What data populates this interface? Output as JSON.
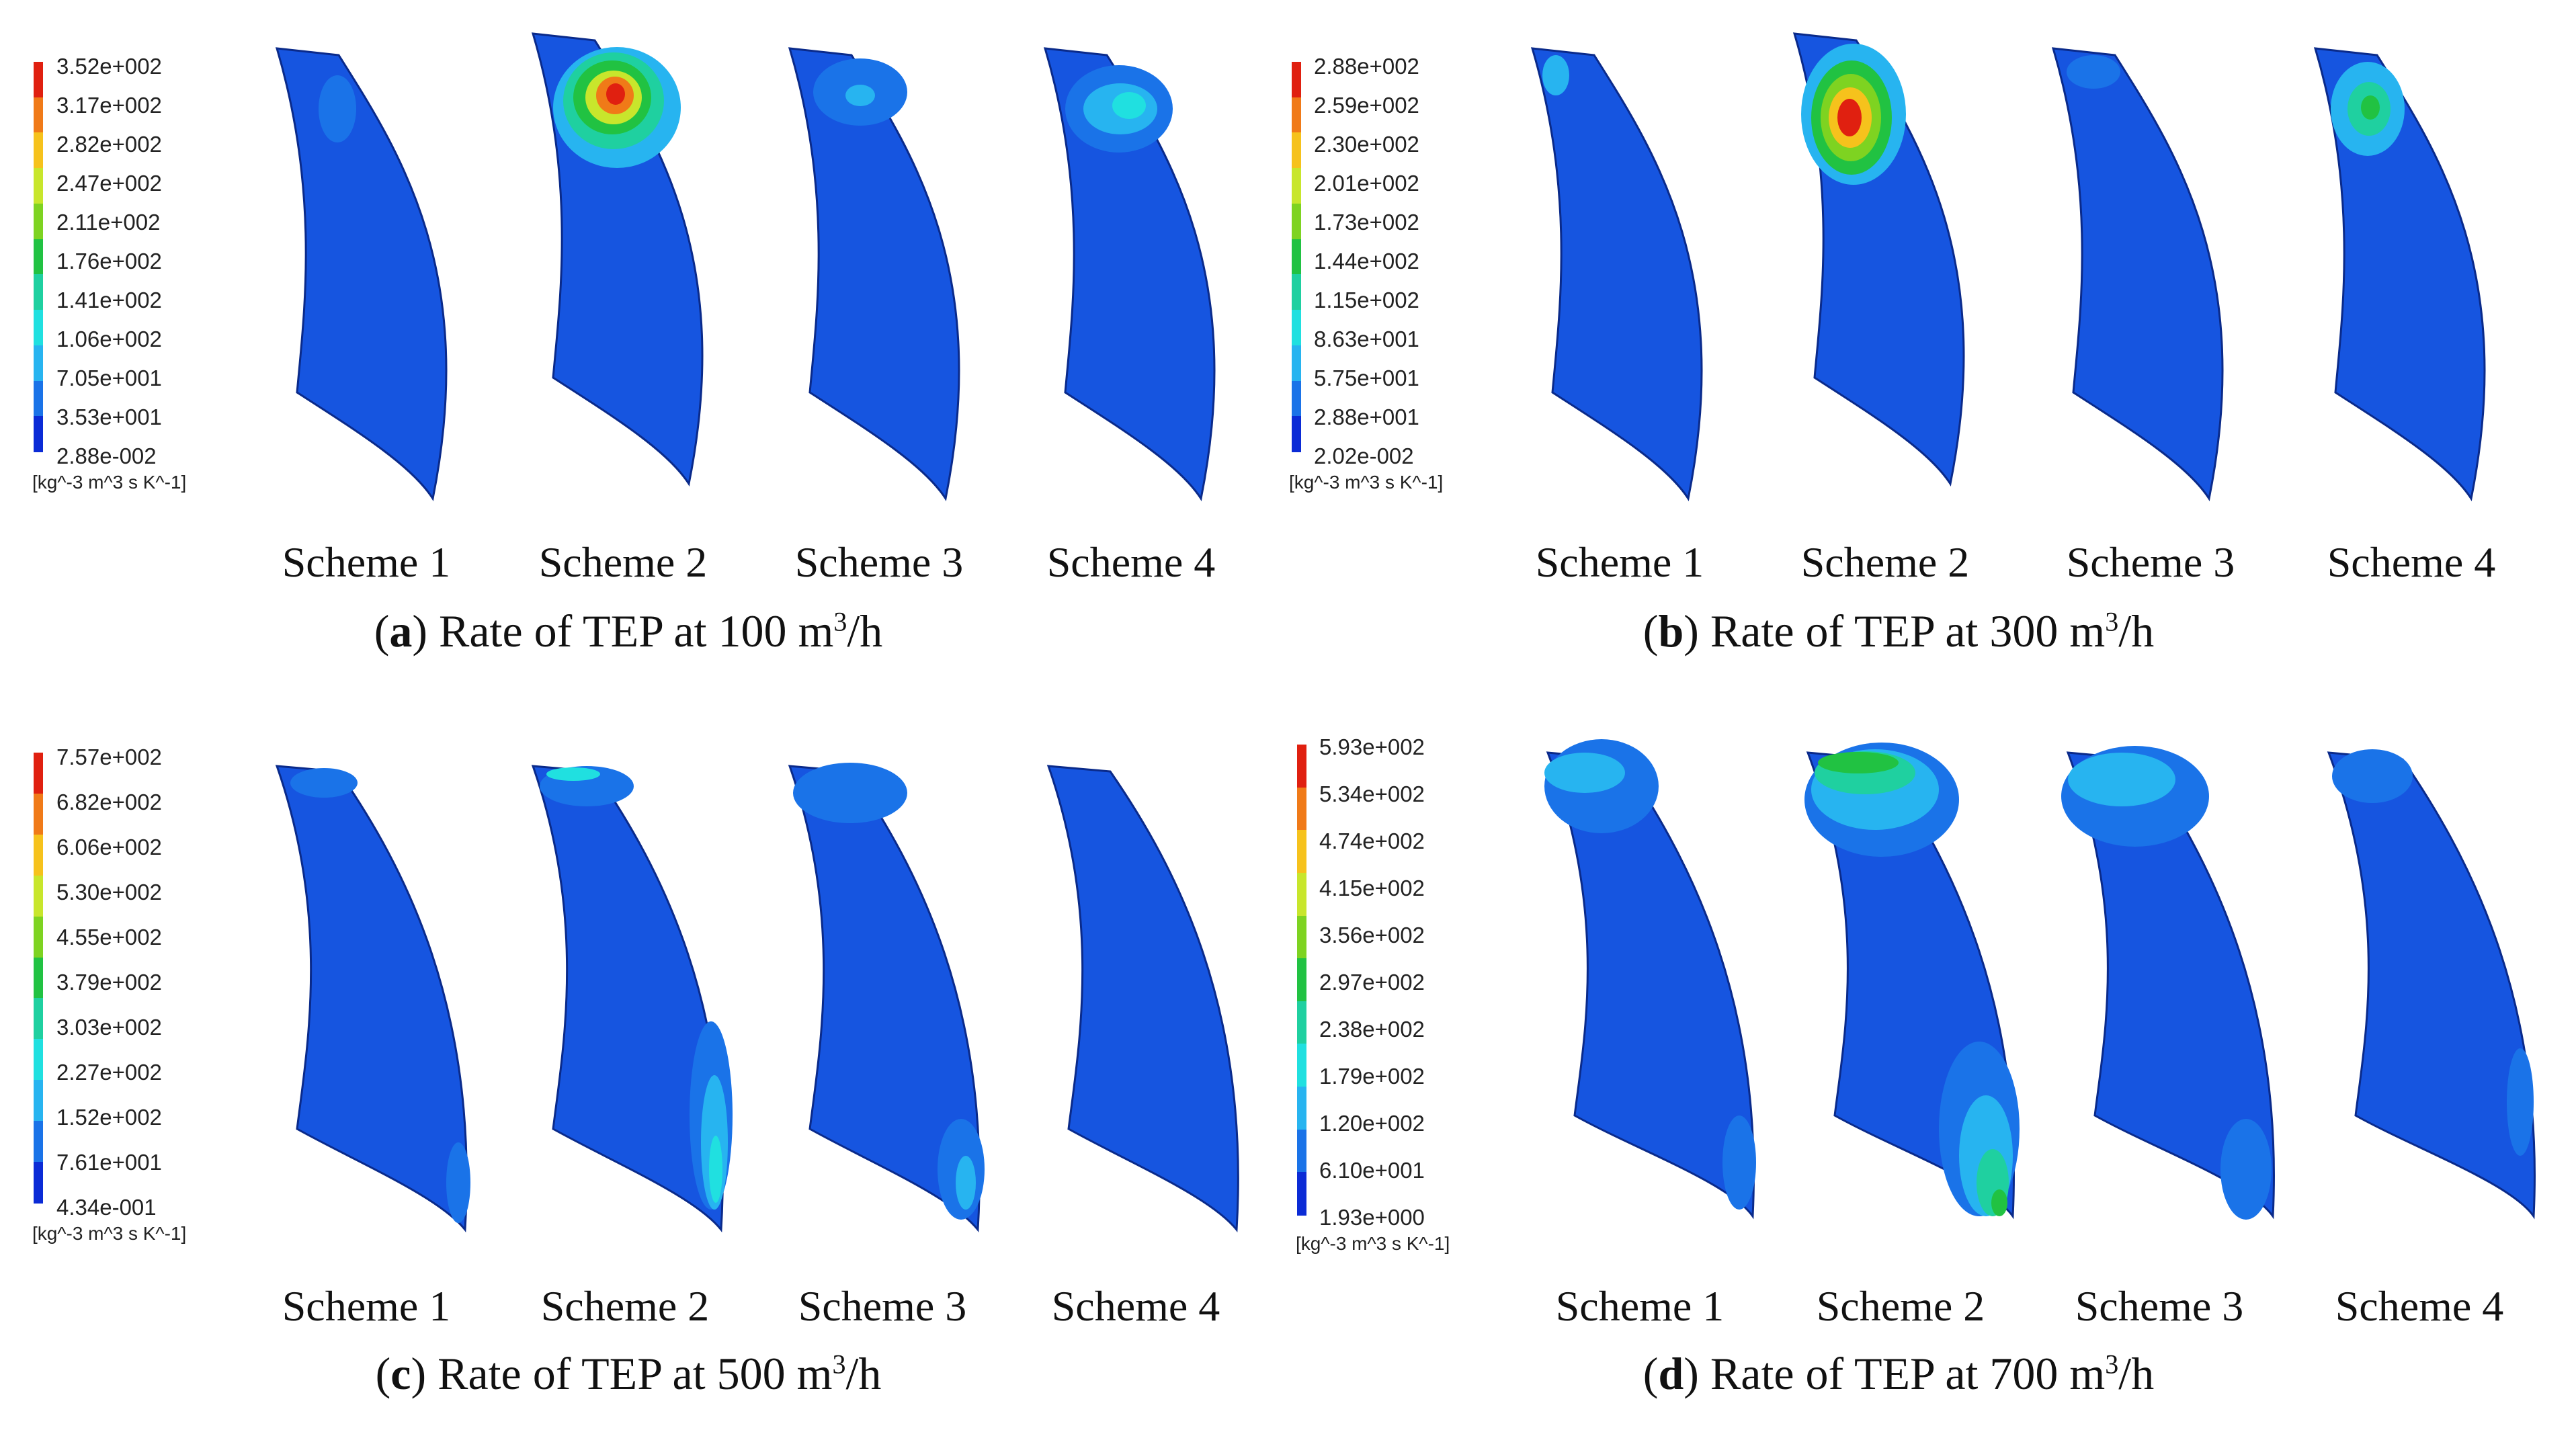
{
  "unit": "[kg^-3 m^3 s K^-1]",
  "colors": {
    "bg_blade": "#1655e0",
    "edge": "#0a2a8a",
    "scale": [
      "#0b2bd6",
      "#1a73e8",
      "#27b4f0",
      "#20e0e0",
      "#1fd0a0",
      "#21c242",
      "#7ed321",
      "#c8e62c",
      "#f6c21c",
      "#f07a18",
      "#e02010"
    ]
  },
  "panels": [
    {
      "id": "a",
      "caption": {
        "letter": "a",
        "text_before": "Rate of TEP at 100 m",
        "sup": "3",
        "text_after": "/h"
      },
      "legend": [
        "3.52e+002",
        "3.17e+002",
        "2.82e+002",
        "2.47e+002",
        "2.11e+002",
        "1.76e+002",
        "1.41e+002",
        "1.06e+002",
        "7.05e+001",
        "3.53e+001",
        "2.88e-002"
      ],
      "schemes": [
        "Scheme 1",
        "Scheme 2",
        "Scheme 3",
        "Scheme 4"
      ]
    },
    {
      "id": "b",
      "caption": {
        "letter": "b",
        "text_before": "Rate of TEP at 300 m",
        "sup": "3",
        "text_after": "/h"
      },
      "legend": [
        "2.88e+002",
        "2.59e+002",
        "2.30e+002",
        "2.01e+002",
        "1.73e+002",
        "1.44e+002",
        "1.15e+002",
        "8.63e+001",
        "5.75e+001",
        "2.88e+001",
        "2.02e-002"
      ],
      "schemes": [
        "Scheme 1",
        "Scheme 2",
        "Scheme 3",
        "Scheme 4"
      ]
    },
    {
      "id": "c",
      "caption": {
        "letter": "c",
        "text_before": "Rate of TEP at 500 m",
        "sup": "3",
        "text_after": "/h"
      },
      "legend": [
        "7.57e+002",
        "6.82e+002",
        "6.06e+002",
        "5.30e+002",
        "4.55e+002",
        "3.79e+002",
        "3.03e+002",
        "2.27e+002",
        "1.52e+002",
        "7.61e+001",
        "4.34e-001"
      ],
      "schemes": [
        "Scheme 1",
        "Scheme 2",
        "Scheme 3",
        "Scheme 4"
      ]
    },
    {
      "id": "d",
      "caption": {
        "letter": "d",
        "text_before": "Rate of TEP at 700 m",
        "sup": "3",
        "text_after": "/h"
      },
      "legend": [
        "5.93e+002",
        "5.34e+002",
        "4.74e+002",
        "4.15e+002",
        "3.56e+002",
        "2.97e+002",
        "2.38e+002",
        "1.79e+002",
        "1.20e+002",
        "6.10e+001",
        "1.93e+000"
      ],
      "schemes": [
        "Scheme 1",
        "Scheme 2",
        "Scheme 3",
        "Scheme 4"
      ]
    }
  ]
}
